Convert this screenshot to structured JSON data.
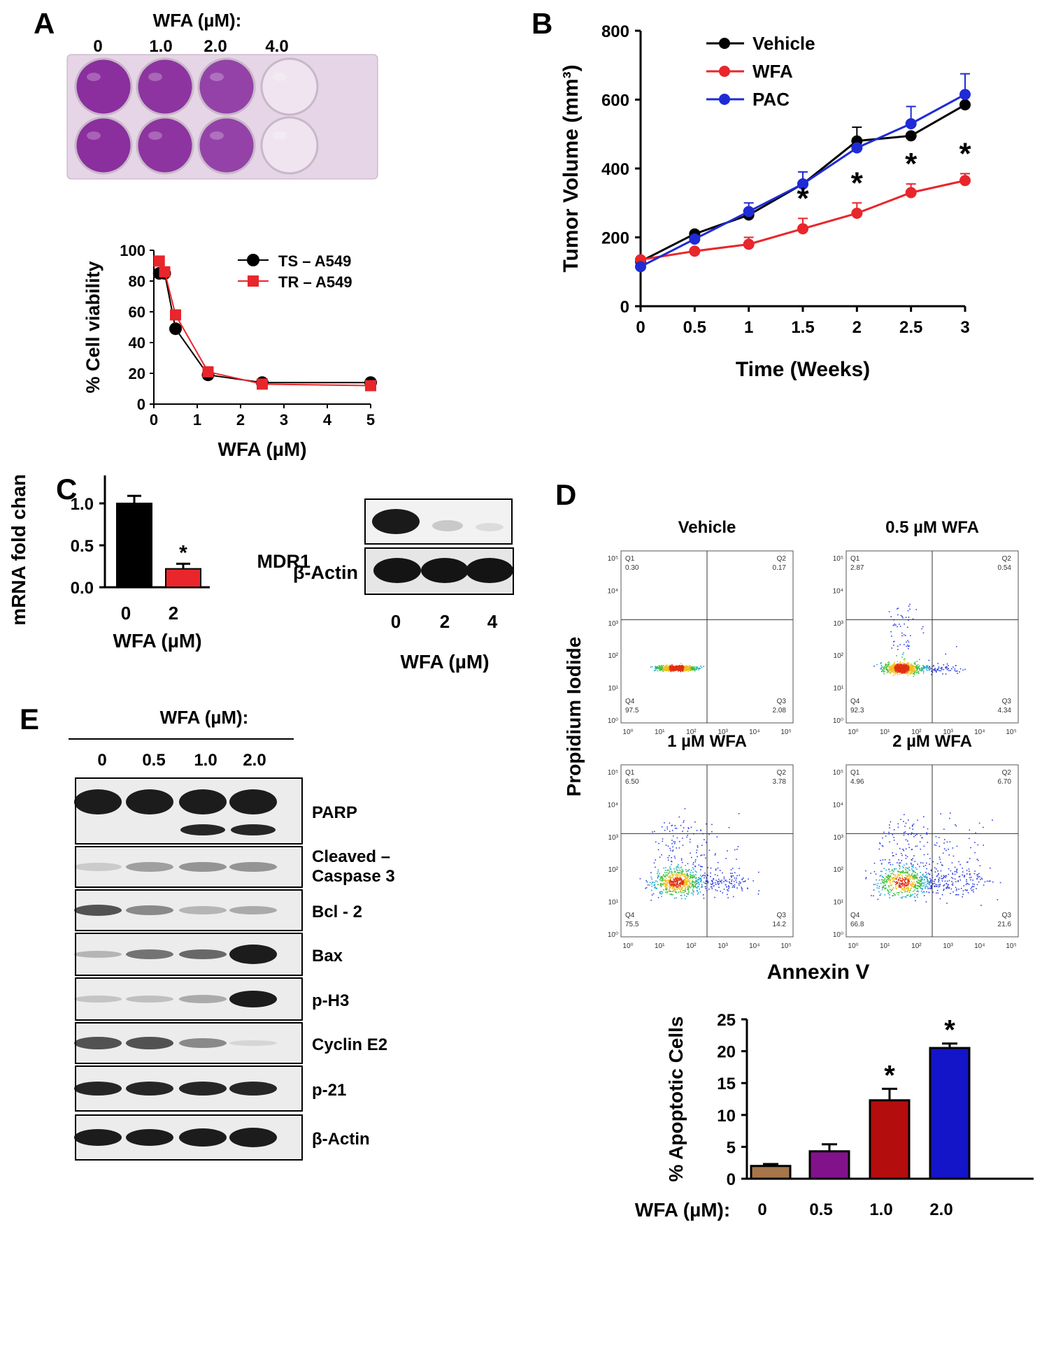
{
  "colors": {
    "black": "#000000",
    "red": "#e8262b",
    "blue": "#1f2bd6",
    "brown": "#a6764a",
    "purple": "#82128a",
    "darkred": "#b40d0d",
    "navy": "#1414c8",
    "plate": "#8a2f9a"
  },
  "panelA": {
    "letter": "A",
    "plate_title": "WFA (µM):",
    "plate_doses": [
      "0",
      "1.0",
      "2.0",
      "4.0"
    ],
    "chart_data": {
      "type": "line",
      "xlabel": "WFA (µM)",
      "ylabel": "% Cell viability",
      "xlim": [
        0,
        5
      ],
      "ylim": [
        0,
        100
      ],
      "xticks": [
        "0",
        "1",
        "2",
        "3",
        "4",
        "5"
      ],
      "yticks": [
        "0",
        "20",
        "40",
        "60",
        "80",
        "100"
      ],
      "series": [
        {
          "name": "TS – A549",
          "color": "#000000",
          "marker": "circle",
          "x": [
            0.125,
            0.25,
            0.5,
            1.25,
            2.5,
            5
          ],
          "y": [
            85,
            85,
            49,
            19,
            14,
            14
          ]
        },
        {
          "name": "TR – A549",
          "color": "#e8262b",
          "marker": "square",
          "x": [
            0.125,
            0.25,
            0.5,
            1.25,
            2.5,
            5
          ],
          "y": [
            93,
            86,
            58,
            21,
            13,
            12
          ]
        }
      ]
    }
  },
  "panelB": {
    "letter": "B",
    "chart_data": {
      "type": "line",
      "xlabel": "Time (Weeks)",
      "ylabel": "Tumor Volume (mm³)",
      "xlim": [
        0,
        3
      ],
      "ylim": [
        0,
        800
      ],
      "xticks": [
        "0",
        "0.5",
        "1",
        "1.5",
        "2",
        "2.5",
        "3"
      ],
      "yticks": [
        "0",
        "200",
        "400",
        "600",
        "800"
      ],
      "legend_position": "top-left",
      "series": [
        {
          "name": "Vehicle",
          "color": "#000000",
          "x": [
            0,
            0.5,
            1,
            1.5,
            2,
            2.5,
            3
          ],
          "y": [
            130,
            210,
            265,
            355,
            480,
            495,
            585
          ],
          "err": [
            0,
            0,
            0,
            0,
            40,
            0,
            0
          ]
        },
        {
          "name": "WFA",
          "color": "#e8262b",
          "x": [
            0,
            0.5,
            1,
            1.5,
            2,
            2.5,
            3
          ],
          "y": [
            135,
            160,
            180,
            225,
            270,
            330,
            365
          ],
          "err": [
            0,
            0,
            20,
            30,
            30,
            25,
            20
          ]
        },
        {
          "name": "PAC",
          "color": "#1f2bd6",
          "x": [
            0,
            0.5,
            1,
            1.5,
            2,
            2.5,
            3
          ],
          "y": [
            115,
            195,
            275,
            355,
            460,
            530,
            615
          ],
          "err": [
            0,
            0,
            25,
            35,
            0,
            50,
            60
          ]
        }
      ],
      "significance": [
        "*",
        "*",
        "*",
        "*"
      ],
      "significance_x": [
        1.5,
        2,
        2.5,
        3
      ]
    }
  },
  "panelC": {
    "letter": "C",
    "chart_data": {
      "type": "bar",
      "title": "MDR1",
      "ylabel": "mRNA fold change",
      "xlabel": "WFA (µM)",
      "categories": [
        "0",
        "2"
      ],
      "values": [
        1.0,
        0.22
      ],
      "errors": [
        0.09,
        0.06
      ],
      "colors": [
        "#000000",
        "#e8262b"
      ],
      "ylim": [
        0,
        1.5
      ],
      "yticks": [
        "0.0",
        "0.5",
        "1.0",
        "1.5"
      ],
      "significance": [
        "",
        "*"
      ]
    },
    "blot_labels": [
      "MDR1",
      "β-Actin"
    ],
    "blot_lanes": [
      "0",
      "2",
      "4"
    ],
    "blot_xlabel": "WFA (µM)"
  },
  "panelD": {
    "letter": "D",
    "y_axis": "Propidium Iodide",
    "x_axis": "Annexin V",
    "plots": [
      {
        "title": "Vehicle",
        "q1": "Q1",
        "q1v": "0.30",
        "q2": "Q2",
        "q2v": "0.17",
        "q3": "Q3",
        "q3v": "2.08",
        "q4": "Q4",
        "q4v": "97.5"
      },
      {
        "title": "0.5 µM WFA",
        "q1": "Q1",
        "q1v": "2.87",
        "q2": "Q2",
        "q2v": "0.54",
        "q3": "Q3",
        "q3v": "4.34",
        "q4": "Q4",
        "q4v": "92.3"
      },
      {
        "title": "1 µM WFA",
        "q1": "Q1",
        "q1v": "6.50",
        "q2": "Q2",
        "q2v": "3.78",
        "q3": "Q3",
        "q3v": "14.2",
        "q4": "Q4",
        "q4v": "75.5"
      },
      {
        "title": "2 µM WFA",
        "q1": "Q1",
        "q1v": "4.96",
        "q2": "Q2",
        "q2v": "6.70",
        "q3": "Q3",
        "q3v": "21.6",
        "q4": "Q4",
        "q4v": "66.8"
      }
    ],
    "flow_ticks": [
      "10⁰",
      "10¹",
      "10²",
      "10³",
      "10⁴",
      "10⁵"
    ],
    "chart_data": {
      "type": "bar",
      "ylabel": "% Apoptotic Cells",
      "xlabel": "WFA (µM):",
      "categories": [
        "0",
        "0.5",
        "1.0",
        "2.0"
      ],
      "values": [
        2.0,
        4.3,
        12.3,
        20.5
      ],
      "errors": [
        0.3,
        1.1,
        1.8,
        0.7
      ],
      "colors": [
        "#a6764a",
        "#82128a",
        "#b40d0d",
        "#1414c8"
      ],
      "ylim": [
        0,
        25
      ],
      "yticks": [
        "0",
        "5",
        "10",
        "15",
        "20",
        "25"
      ],
      "significance": [
        "",
        "",
        "*",
        "*"
      ]
    }
  },
  "panelE": {
    "letter": "E",
    "title": "WFA (µM):",
    "lanes": [
      "0",
      "0.5",
      "1.0",
      "2.0"
    ],
    "blots": [
      {
        "label": "PARP"
      },
      {
        "label": "Cleaved –\nCaspase 3"
      },
      {
        "label": "Bcl - 2"
      },
      {
        "label": "Bax"
      },
      {
        "label": "p-H3"
      },
      {
        "label": "Cyclin E2"
      },
      {
        "label": "p-21"
      },
      {
        "label": "β-Actin"
      }
    ]
  }
}
